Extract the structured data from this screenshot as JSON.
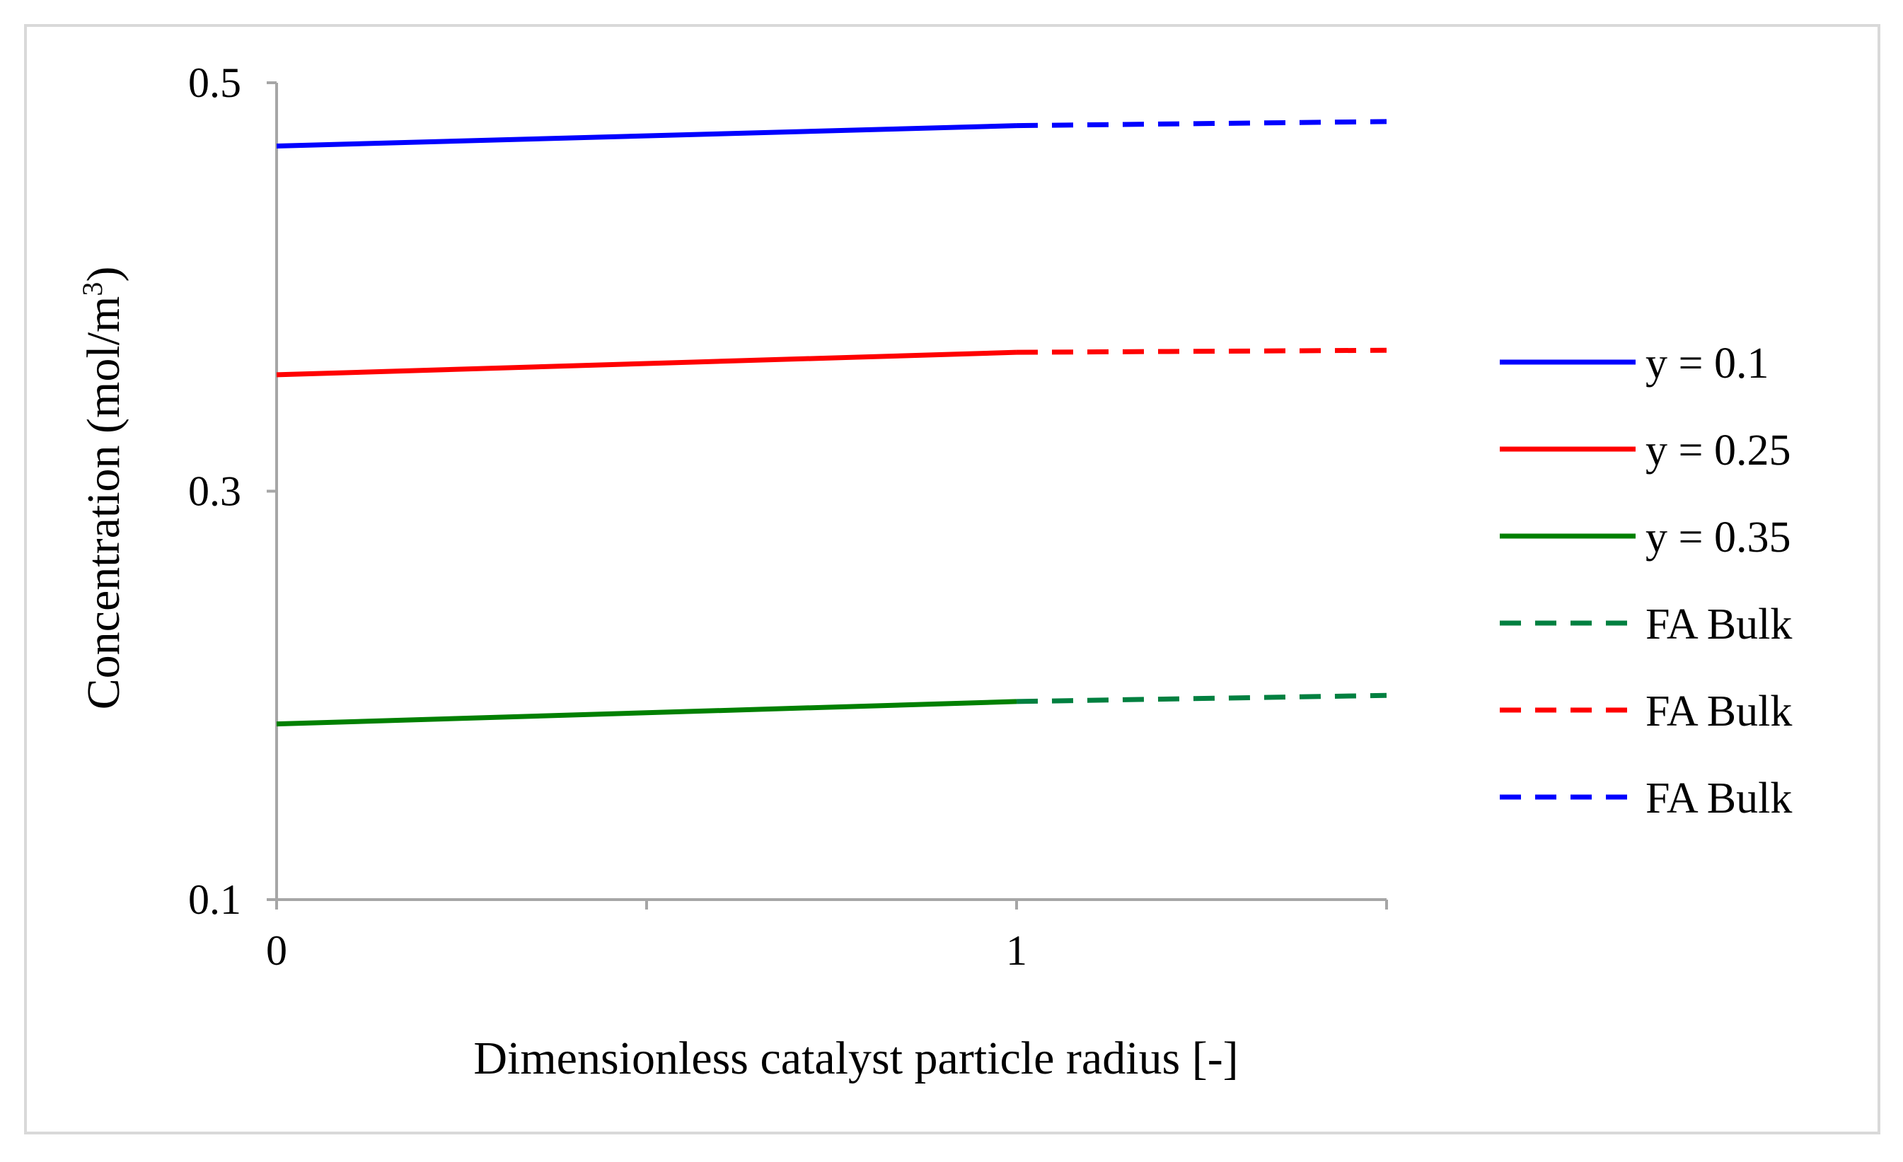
{
  "chart_data": {
    "type": "line",
    "title": "",
    "xlabel": "Dimensionless catalyst particle radius [-]",
    "ylabel": "Concentration (mol/m",
    "ylabel_superscript": "3",
    "ylabel_suffix": ")",
    "xlim": [
      0,
      1.5
    ],
    "ylim": [
      0.1,
      0.5
    ],
    "x_ticks": [
      0,
      1
    ],
    "x_tick_labels": [
      "0",
      "1"
    ],
    "x_minor_ticks": [
      0.5,
      1.5
    ],
    "y_ticks": [
      0.1,
      0.3,
      0.5
    ],
    "y_tick_labels": [
      "0.1",
      "0.3",
      "0.5"
    ],
    "grid": false,
    "legend_position": "right",
    "series": [
      {
        "name": "y = 0.1",
        "color": "#0000ff",
        "style": "solid",
        "x": [
          0,
          1
        ],
        "values": [
          0.469,
          0.479
        ]
      },
      {
        "name": "y = 0.25",
        "color": "#ff0000",
        "style": "solid",
        "x": [
          0,
          1
        ],
        "values": [
          0.357,
          0.368
        ]
      },
      {
        "name": "y = 0.35",
        "color": "#008000",
        "style": "solid",
        "x": [
          0,
          1
        ],
        "values": [
          0.186,
          0.197
        ]
      },
      {
        "name": "FA Bulk",
        "color": "#008040",
        "style": "dashed",
        "x": [
          1,
          1.5
        ],
        "values": [
          0.197,
          0.2
        ]
      },
      {
        "name": "FA Bulk",
        "color": "#ff0000",
        "style": "dashed",
        "x": [
          1,
          1.5
        ],
        "values": [
          0.368,
          0.369
        ]
      },
      {
        "name": "FA Bulk",
        "color": "#0000ff",
        "style": "dashed",
        "x": [
          1,
          1.5
        ],
        "values": [
          0.479,
          0.481
        ]
      }
    ]
  }
}
